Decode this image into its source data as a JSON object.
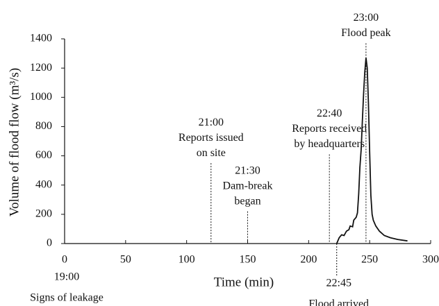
{
  "chart_data": {
    "type": "line",
    "x_label": "Time (min)",
    "y_label": "Volume of flood flow (m³/s)",
    "color": "#111111",
    "x": [
      223,
      225,
      227,
      229,
      231,
      233,
      234,
      236,
      237,
      239,
      240,
      241,
      242,
      243,
      244,
      245,
      246,
      247,
      248,
      249,
      250,
      251,
      252,
      253,
      255,
      258,
      262,
      267,
      273,
      281
    ],
    "values": [
      0,
      40,
      60,
      55,
      85,
      95,
      120,
      115,
      160,
      180,
      210,
      340,
      520,
      640,
      830,
      1020,
      1170,
      1270,
      1200,
      960,
      620,
      330,
      200,
      160,
      120,
      85,
      55,
      40,
      28,
      18
    ],
    "xlim": [
      0,
      300
    ],
    "xticks": [
      0,
      50,
      100,
      150,
      200,
      250,
      300
    ],
    "ylim": [
      0,
      1400
    ],
    "yticks": [
      0,
      200,
      400,
      600,
      800,
      1000,
      1200,
      1400
    ],
    "annotations": [
      {
        "x": 0,
        "side": "below",
        "text": [
          "19:00",
          "Signs of leakage"
        ]
      },
      {
        "x": 120,
        "y": 550,
        "side": "above",
        "text": [
          "21:00",
          "Reports issued",
          "on site"
        ]
      },
      {
        "x": 150,
        "y": 220,
        "side": "above",
        "text": [
          "21:30",
          "Dam-break",
          "began"
        ]
      },
      {
        "x": 217,
        "y": 610,
        "side": "above",
        "text": [
          "22:40",
          "Reports received",
          "by headquarters"
        ]
      },
      {
        "x": 247,
        "y": 1370,
        "side": "above",
        "text": [
          "23:00",
          "Flood peak"
        ]
      },
      {
        "x": 223,
        "side": "below",
        "text": [
          "22:45",
          "Flood arrived"
        ]
      }
    ]
  }
}
